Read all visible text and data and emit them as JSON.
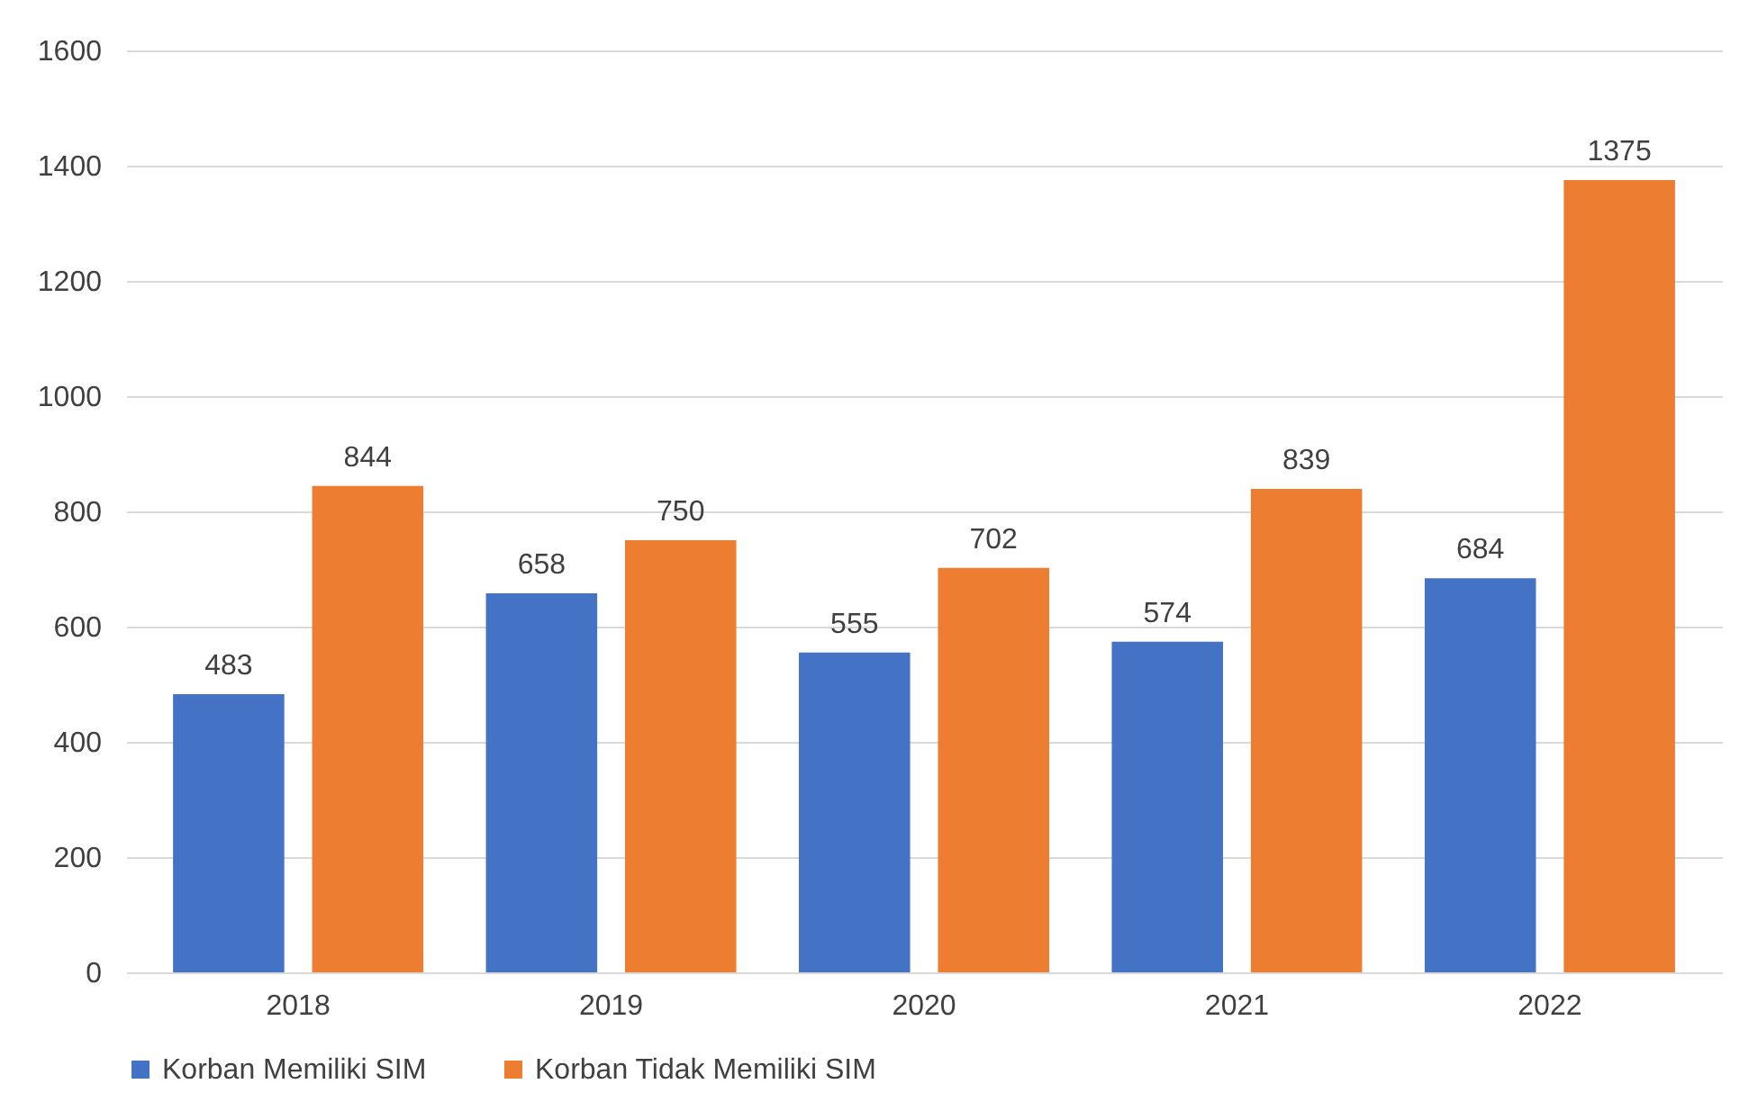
{
  "chart_data": {
    "type": "bar",
    "categories": [
      "2018",
      "2019",
      "2020",
      "2021",
      "2022"
    ],
    "series": [
      {
        "name": "Korban Memiliki SIM",
        "color": "#4472c4",
        "values": [
          483,
          658,
          555,
          574,
          684
        ]
      },
      {
        "name": "Korban Tidak Memiliki SIM",
        "color": "#ed7d31",
        "values": [
          844,
          750,
          702,
          839,
          1375
        ]
      }
    ],
    "ylim": [
      0,
      1600
    ],
    "yticks": [
      0,
      200,
      400,
      600,
      800,
      1000,
      1200,
      1400,
      1600
    ],
    "grid": "y",
    "legend": "bottom",
    "data_labels": true
  }
}
